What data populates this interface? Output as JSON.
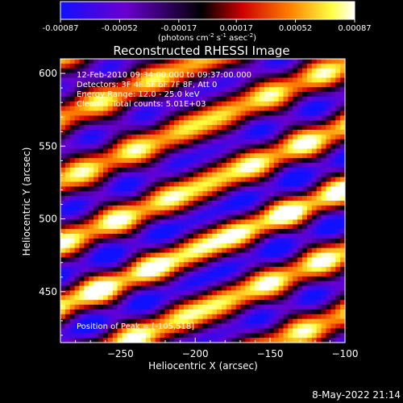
{
  "colorbar": {
    "ticks": [
      "-0.00087",
      "-0.00052",
      "-0.00017",
      "0.00017",
      "0.00052",
      "0.00087"
    ],
    "tick_values": [
      -0.00087,
      -0.00052,
      -0.00017,
      0.00017,
      0.00052,
      0.00087
    ],
    "range": [
      -0.00087,
      0.00087
    ],
    "units_prefix": "(photons cm",
    "units_exp1": "-2",
    "units_mid": " s",
    "units_exp2": "-1",
    "units_mid2": " asec",
    "units_exp3": "-2",
    "units_suffix": ")",
    "colormap": [
      "#1010ff",
      "#6a00d0",
      "#000000",
      "#d00000",
      "#ff8000",
      "#ffff40",
      "#ffffff"
    ]
  },
  "chart_data": {
    "type": "heatmap",
    "title": "Reconstructed RHESSI Image",
    "xlabel": "Heliocentric X (arcsec)",
    "ylabel": "Heliocentric Y (arcsec)",
    "xlim": [
      -290,
      -100
    ],
    "ylim": [
      415,
      610
    ],
    "xticks": [
      -250,
      -200,
      -150,
      -100
    ],
    "xtick_labels": [
      "−250",
      "−200",
      "−150",
      "−100"
    ],
    "yticks": [
      450,
      500,
      550,
      600
    ],
    "ytick_labels": [
      "450",
      "500",
      "550",
      "600"
    ],
    "pattern": {
      "description_free": true,
      "peak_x": -105,
      "peak_y": 518,
      "stripe_slope": 0.42,
      "stripe_period": 43
    }
  },
  "annotations": {
    "line1": "12-Feb-2010 09:34:00.000 to 09:37:00.000",
    "line2": "Detectors: 3F 4F 5F 6F 7F 8F, Att 0",
    "line3": "Energy Range: 12.0 - 25.0 keV",
    "line4": "Clean     Total counts: 5.01E+03",
    "peak": "Position of Peak = [-105,518]"
  },
  "footer": {
    "timestamp": "8-May-2022 21:14"
  }
}
